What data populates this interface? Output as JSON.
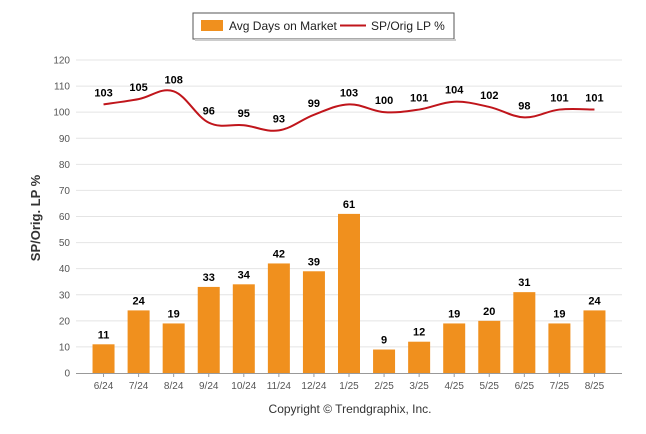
{
  "chart_data": {
    "type": "bar",
    "categories": [
      "6/24",
      "7/24",
      "8/24",
      "9/24",
      "10/24",
      "11/24",
      "12/24",
      "1/25",
      "2/25",
      "3/25",
      "4/25",
      "5/25",
      "6/25",
      "7/25",
      "8/25"
    ],
    "series": [
      {
        "name": "Avg Days on Market",
        "type": "bar",
        "color": "#F0901E",
        "values": [
          11,
          24,
          19,
          33,
          34,
          42,
          39,
          61,
          9,
          12,
          19,
          20,
          31,
          19,
          24
        ]
      },
      {
        "name": "SP/Orig LP %",
        "type": "line",
        "color": "#C0151B",
        "values": [
          103,
          105,
          108,
          96,
          95,
          93,
          99,
          103,
          100,
          101,
          104,
          102,
          98,
          101,
          101
        ]
      }
    ],
    "ylabel": "SP/Orig. LP %",
    "xlabel": "",
    "ylim": [
      0,
      120
    ],
    "yticks": [
      0,
      10,
      20,
      30,
      40,
      50,
      60,
      70,
      80,
      90,
      100,
      110,
      120
    ],
    "grid": true,
    "legend": "top-center"
  },
  "copyright": "Copyright © Trendgraphix, Inc."
}
